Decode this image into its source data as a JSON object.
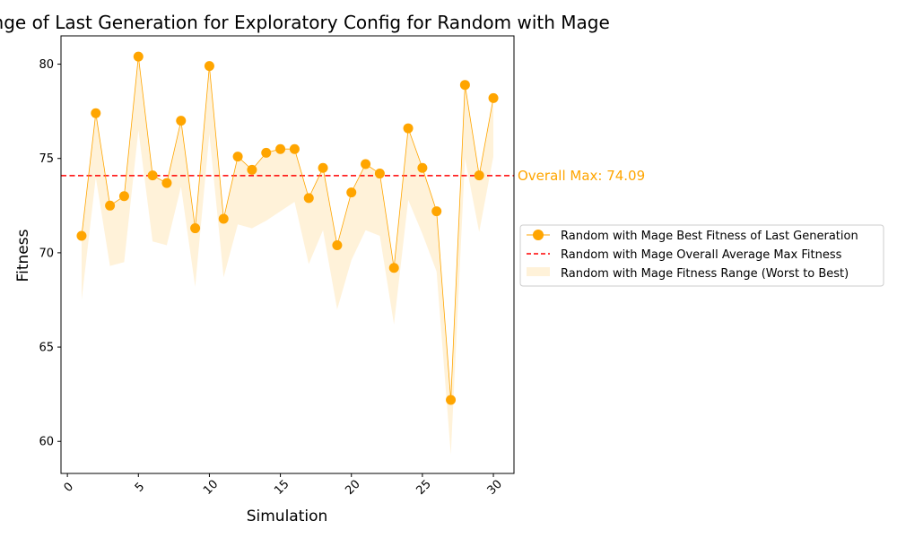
{
  "chart_data": {
    "type": "line",
    "title": "Fitness Range of Last Generation for Exploratory Config for Random with Mage",
    "xlabel": "Simulation",
    "ylabel": "Fitness",
    "xlim": [
      -0.45,
      31.45
    ],
    "ylim": [
      58.3,
      81.5
    ],
    "xticks": [
      0,
      5,
      10,
      15,
      20,
      25,
      30
    ],
    "yticks": [
      60,
      65,
      70,
      75,
      80
    ],
    "x": [
      1,
      2,
      3,
      4,
      5,
      6,
      7,
      8,
      9,
      10,
      11,
      12,
      13,
      14,
      15,
      16,
      17,
      18,
      19,
      20,
      21,
      22,
      23,
      24,
      25,
      26,
      27,
      28,
      29,
      30
    ],
    "series": [
      {
        "name": "Random with Mage Best Fitness of Last Generation",
        "kind": "line-markers",
        "values": [
          70.9,
          77.4,
          72.5,
          73.0,
          80.4,
          74.1,
          73.7,
          77.0,
          71.3,
          79.9,
          71.8,
          75.1,
          74.4,
          75.3,
          75.5,
          75.5,
          72.9,
          74.5,
          70.4,
          73.2,
          74.7,
          74.2,
          69.2,
          76.6,
          74.5,
          72.2,
          62.2,
          78.9,
          74.1,
          78.2
        ]
      },
      {
        "name": "Random with Mage Overall Average Max Fitness",
        "kind": "hline",
        "value": 74.09
      },
      {
        "name": "Random with Mage Fitness Range (Worst to Best)",
        "kind": "band",
        "lower": [
          67.5,
          74.0,
          69.3,
          69.5,
          76.5,
          70.6,
          70.4,
          73.5,
          68.2,
          76.3,
          68.7,
          71.5,
          71.3,
          71.7,
          72.2,
          72.7,
          69.4,
          71.2,
          67.0,
          69.6,
          71.2,
          70.9,
          66.2,
          72.8,
          71.0,
          69.0,
          59.3,
          75.0,
          71.1,
          75.1
        ],
        "upper": [
          70.9,
          77.4,
          72.5,
          73.0,
          80.4,
          74.1,
          73.7,
          77.0,
          71.3,
          79.9,
          71.8,
          75.1,
          74.4,
          75.3,
          75.5,
          75.5,
          72.9,
          74.5,
          70.4,
          73.2,
          74.7,
          74.2,
          69.2,
          76.6,
          74.5,
          72.2,
          62.2,
          78.9,
          74.1,
          78.2
        ]
      }
    ],
    "annotation": "Overall Max: 74.09",
    "legend_position": "center-right outside",
    "grid": false,
    "colors": {
      "line": "#FFA500",
      "band": "#FFA500",
      "hline": "#FF0000"
    }
  }
}
